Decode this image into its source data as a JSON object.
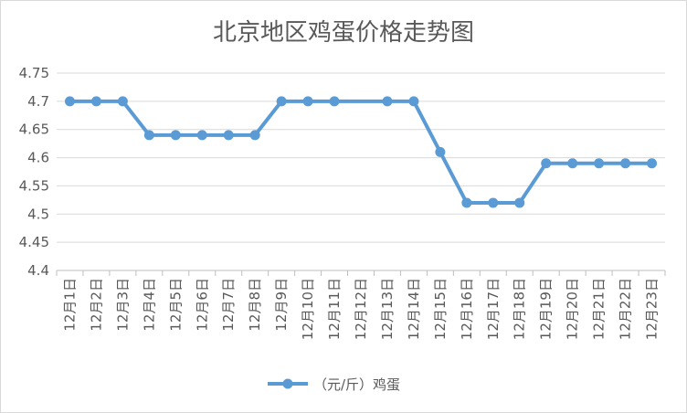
{
  "chart_data": {
    "type": "line",
    "title": "北京地区鸡蛋价格走势图",
    "categories": [
      "12月1日",
      "12月2日",
      "12月3日",
      "12月4日",
      "12月5日",
      "12月6日",
      "12月7日",
      "12月8日",
      "12月9日",
      "12月10日",
      "12月11日",
      "12月12日",
      "12月13日",
      "12月14日",
      "12月15日",
      "12月16日",
      "12月17日",
      "12月18日",
      "12月19日",
      "12月20日",
      "12月21日",
      "12月22日",
      "12月23日"
    ],
    "series": [
      {
        "name": "（元/斤）鸡蛋",
        "values": [
          4.7,
          4.7,
          4.7,
          4.64,
          4.64,
          4.64,
          4.64,
          4.64,
          4.7,
          4.7,
          4.7,
          null,
          4.7,
          4.7,
          4.61,
          4.52,
          4.52,
          4.52,
          4.59,
          4.59,
          4.59,
          4.59,
          4.59
        ]
      }
    ],
    "ylim": [
      4.4,
      4.75
    ],
    "yticks": [
      "4.4",
      "4.45",
      "4.5",
      "4.55",
      "4.6",
      "4.65",
      "4.7",
      "4.75"
    ],
    "grid": true,
    "legend_position": "bottom",
    "colors": {
      "line": "#5B9BD5",
      "grid": "#d9d9d9",
      "axis": "#bfbfbf",
      "text": "#595959"
    }
  }
}
